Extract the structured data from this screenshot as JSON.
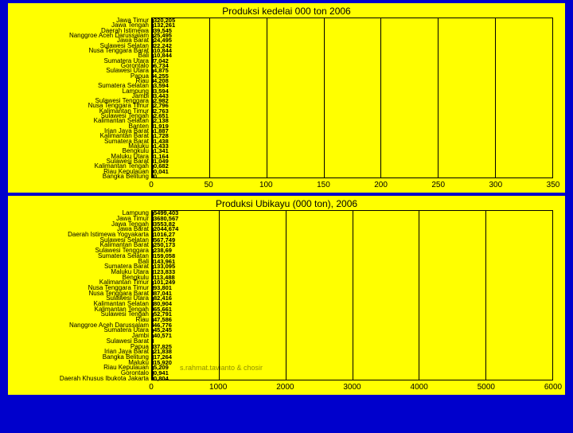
{
  "background_color": "#0000cc",
  "panel_color": "#ffff00",
  "chart1": {
    "type": "bar",
    "title": "Produksi kedelai 000 ton 2006",
    "title_fontsize": 12,
    "bar_color": "#00cc00",
    "bar_border": "#000000",
    "grid_color": "#000000",
    "label_fontsize": 8,
    "xlim": [
      0,
      350
    ],
    "xticks": [
      0,
      50,
      100,
      150,
      200,
      250,
      300,
      350
    ],
    "categories": [
      "Jawa Timur",
      "Jawa Tengah",
      "Daerah Istimewa",
      "Nanggroe Aceh Darussalam",
      "Jawa Barat",
      "Sulawesi Selatan",
      "Nusa Tenggara Barat",
      "Bali",
      "Sumatera Utara",
      "Gorontalo",
      "Sulawesi Utara",
      "Papua",
      "Riau",
      "Sumatera Selatan",
      "Lampung",
      "Jambi",
      "Sulawesi Tenggara",
      "Nusa Tenggara Timur",
      "Kalimantan Timur",
      "Sulawesi Tengah",
      "Kalimantan Selatan",
      "Banten",
      "Irian Jaya Barat",
      "Kalimantan Barat",
      "Sumatera Barat",
      "Maluku",
      "Bengkulu",
      "Maluku Utara",
      "Sulawesi Barat",
      "Kalimantan Tengah",
      "Riau Kepulauan",
      "Bangka Belitung"
    ],
    "values": [
      320.205,
      132.261,
      39.545,
      25.495,
      24.495,
      22.242,
      10.844,
      10.844,
      7.042,
      6.734,
      4.875,
      4.255,
      4.208,
      3.594,
      3.594,
      3.443,
      2.982,
      2.796,
      2.763,
      2.651,
      2.138,
      1.919,
      1.887,
      1.728,
      1.438,
      1.433,
      1.341,
      1.164,
      1.049,
      0.682,
      0.041,
      0
    ],
    "value_labels": [
      "320,205",
      "132,261",
      "39,545",
      "25,495",
      "24,495",
      "22,242",
      "10,844",
      "10,844",
      "7,042",
      "6,734",
      "4,875",
      "4,255",
      "4,208",
      "3,594",
      "3,594",
      "3,443",
      "2,982",
      "2,796",
      "2,763",
      "2,651",
      "2,138",
      "1,919",
      "1,887",
      "1,728",
      "1,438",
      "1,433",
      "1,341",
      "1,164",
      "1,049",
      "0,682",
      "0,041",
      "0"
    ]
  },
  "chart2": {
    "type": "bar",
    "title": "Produksi Ubikayu (000 ton), 2006",
    "title_fontsize": 12,
    "bar_color": "#ffff00",
    "bar_border": "#000000",
    "grid_color": "#000000",
    "label_fontsize": 8,
    "xlim": [
      0,
      6000
    ],
    "xticks": [
      0,
      1000,
      2000,
      3000,
      4000,
      5000,
      6000
    ],
    "categories": [
      "Lampung",
      "Jawa Timur",
      "Jawa Tengah",
      "Jawa Barat",
      "Daerah Istimewa Yogyakarta",
      "Sulawesi Selatan",
      "Kalimantan Barat",
      "Sulawesi Tenggara",
      "Sumatera Selatan",
      "Bali",
      "Sumatera Barat",
      "Maluku Utara",
      "Bengkulu",
      "Kalimantan Timur",
      "Nusa Tenggara Timur",
      "Nusa Tenggara Barat",
      "Sulawesi Utara",
      "Kalimantan Selatan",
      "Kalimantan Tengah",
      "Sulawesi Tengah",
      "Riau",
      "Nanggroe Aceh Darussalam",
      "Sumatera Utara",
      "Jambi",
      "Sulawesi Barat",
      "Papua",
      "Irian Jaya Barat",
      "Bangka Belitung",
      "Maluku",
      "Riau Kepulauan",
      "Gorontalo",
      "Daerah Khusus Ibukota Jakarta"
    ],
    "values": [
      5499.403,
      3680.567,
      3553.82,
      2044.674,
      1016.27,
      567.749,
      250.173,
      238.69,
      159.058,
      143.961,
      133.095,
      123.833,
      113.488,
      101.249,
      93.801,
      87.041,
      82.416,
      80.904,
      65.661,
      52.791,
      47.586,
      46.776,
      45.245,
      40.571,
      40.0,
      37.825,
      21.838,
      17.264,
      15.92,
      5.209,
      0.941,
      0.804
    ],
    "value_labels": [
      "5499,403",
      "3680,567",
      "3553,82",
      "2044,674",
      "1016,27",
      "567,749",
      "250,173",
      "238,69",
      "159,058",
      "143,961",
      "133,095",
      "123,833",
      "113,488",
      "101,249",
      "93,801",
      "87,041",
      "82,416",
      "80,904",
      "65,661",
      "52,791",
      "47,586",
      "46,776",
      "45,245",
      "40,571",
      "",
      "37,825",
      "21,838",
      "17,264",
      "15,920",
      "5,209",
      "0,941",
      "0,804"
    ],
    "watermark_text": "s.rahmat.tavianto & chosir"
  }
}
